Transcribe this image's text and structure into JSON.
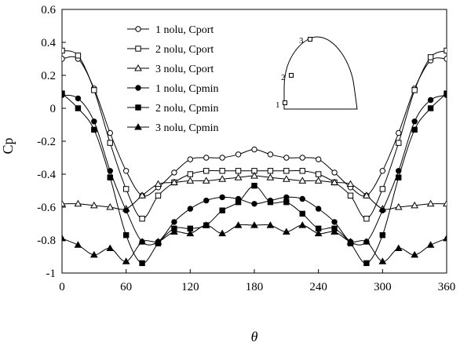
{
  "chart_data": {
    "type": "line",
    "x": [
      0,
      15,
      30,
      45,
      60,
      75,
      90,
      105,
      120,
      135,
      150,
      165,
      180,
      195,
      210,
      225,
      240,
      255,
      270,
      285,
      300,
      315,
      330,
      345,
      360
    ],
    "xticks": [
      0,
      60,
      120,
      180,
      240,
      300,
      360
    ],
    "yticks": [
      0.6,
      0.4,
      0.2,
      0,
      -0.2,
      -0.4,
      -0.6,
      -0.8,
      -1
    ],
    "xlim": [
      0,
      360
    ],
    "ylim": [
      -1,
      0.6
    ],
    "xlabel": "θ",
    "ylabel": "Cp",
    "grid": false,
    "legend_position": "top-left",
    "series": [
      {
        "name": "1 nolu, Cport",
        "marker": "circle-open",
        "values": [
          0.3,
          0.3,
          0.12,
          -0.15,
          -0.38,
          -0.53,
          -0.48,
          -0.39,
          -0.31,
          -0.3,
          -0.3,
          -0.28,
          -0.25,
          -0.28,
          -0.3,
          -0.3,
          -0.31,
          -0.39,
          -0.48,
          -0.53,
          -0.38,
          -0.15,
          0.12,
          0.29,
          0.3
        ]
      },
      {
        "name": "2 nolu, Cport",
        "marker": "square-open",
        "values": [
          0.35,
          0.32,
          0.11,
          -0.21,
          -0.49,
          -0.67,
          -0.53,
          -0.45,
          -0.4,
          -0.38,
          -0.38,
          -0.38,
          -0.38,
          -0.38,
          -0.38,
          -0.38,
          -0.4,
          -0.45,
          -0.53,
          -0.67,
          -0.49,
          -0.21,
          0.11,
          0.31,
          0.35
        ]
      },
      {
        "name": "3 nolu, Cport",
        "marker": "triangle-open",
        "values": [
          -0.58,
          -0.58,
          -0.59,
          -0.6,
          -0.61,
          -0.53,
          -0.46,
          -0.45,
          -0.44,
          -0.44,
          -0.43,
          -0.42,
          -0.41,
          -0.42,
          -0.43,
          -0.44,
          -0.44,
          -0.45,
          -0.46,
          -0.53,
          -0.61,
          -0.6,
          -0.59,
          -0.58,
          -0.58
        ]
      },
      {
        "name": "1 nolu, Cpmin",
        "marker": "circle-filled",
        "values": [
          0.08,
          0.06,
          -0.08,
          -0.38,
          -0.62,
          -0.81,
          -0.81,
          -0.69,
          -0.61,
          -0.56,
          -0.54,
          -0.55,
          -0.58,
          -0.56,
          -0.54,
          -0.55,
          -0.61,
          -0.69,
          -0.81,
          -0.81,
          -0.62,
          -0.38,
          -0.08,
          0.05,
          0.08
        ]
      },
      {
        "name": "2 nolu, Cpmin",
        "marker": "square-filled",
        "values": [
          0.09,
          0.0,
          -0.13,
          -0.42,
          -0.77,
          -0.94,
          -0.82,
          -0.73,
          -0.73,
          -0.71,
          -0.62,
          -0.57,
          -0.47,
          -0.57,
          -0.57,
          -0.64,
          -0.73,
          -0.73,
          -0.82,
          -0.94,
          -0.77,
          -0.42,
          -0.13,
          0.0,
          0.09
        ]
      },
      {
        "name": "3 nolu, Cpmin",
        "marker": "triangle-filled",
        "values": [
          -0.79,
          -0.83,
          -0.89,
          -0.85,
          -0.93,
          -0.81,
          -0.81,
          -0.75,
          -0.76,
          -0.71,
          -0.76,
          -0.71,
          -0.71,
          -0.71,
          -0.75,
          -0.71,
          -0.76,
          -0.75,
          -0.81,
          -0.81,
          -0.93,
          -0.85,
          -0.89,
          -0.83,
          -0.79
        ]
      }
    ],
    "inset": {
      "points": [
        "1",
        "2",
        "3"
      ]
    }
  }
}
